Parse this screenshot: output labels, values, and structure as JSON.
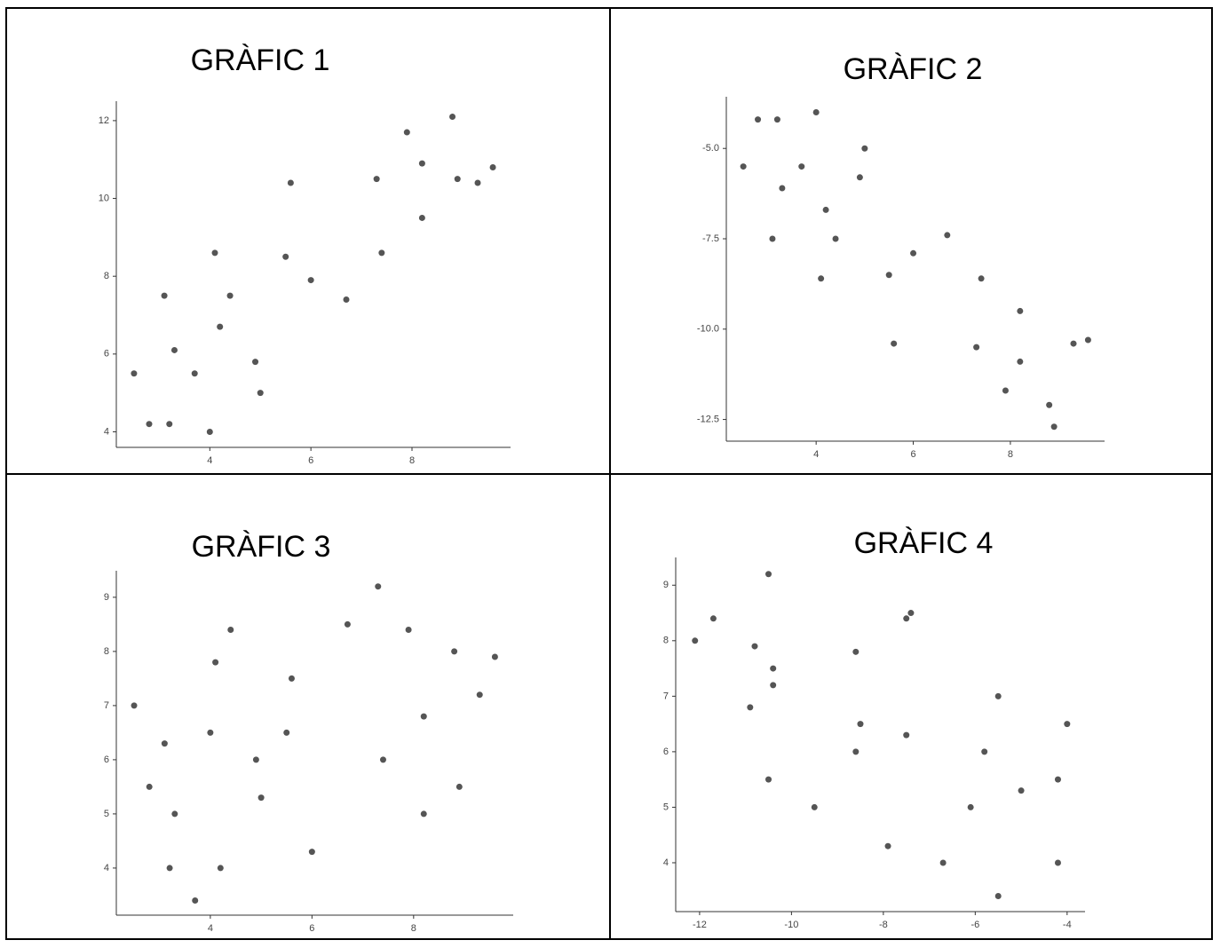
{
  "chart_data": [
    {
      "type": "scatter",
      "title": "GRÀFIC 1",
      "color": "#555555",
      "x": [
        2.5,
        2.8,
        3.1,
        3.2,
        3.3,
        3.7,
        4.0,
        4.1,
        4.2,
        4.4,
        4.9,
        5.0,
        5.5,
        5.6,
        6.0,
        6.7,
        7.3,
        7.4,
        7.9,
        8.2,
        8.2,
        8.8,
        8.9,
        9.3,
        9.6
      ],
      "values": [
        5.5,
        4.2,
        7.5,
        4.2,
        6.1,
        5.5,
        4.0,
        8.6,
        6.7,
        7.5,
        5.8,
        5.0,
        8.5,
        10.4,
        7.9,
        7.4,
        10.5,
        8.6,
        11.7,
        10.9,
        9.5,
        12.1,
        10.5,
        10.4,
        10.8
      ],
      "xlim": [
        2.15,
        9.95
      ],
      "ylim": [
        3.6,
        12.5
      ],
      "xticks": [
        4,
        6,
        8
      ],
      "yticks": [
        4,
        6,
        8,
        10,
        12
      ],
      "grid": false
    },
    {
      "type": "scatter",
      "title": "GRÀFIC 2",
      "color": "#555555",
      "x": [
        2.5,
        2.8,
        3.1,
        3.2,
        3.3,
        3.7,
        4.0,
        4.1,
        4.2,
        4.4,
        4.9,
        5.0,
        5.5,
        5.6,
        6.0,
        6.7,
        7.3,
        7.4,
        7.9,
        8.2,
        8.2,
        8.8,
        8.9,
        9.3,
        9.6
      ],
      "values": [
        -5.5,
        -4.2,
        -7.5,
        -4.2,
        -6.1,
        -5.5,
        -4.0,
        -8.6,
        -6.7,
        -7.5,
        -5.8,
        -5.0,
        -8.5,
        -10.4,
        -7.9,
        -7.4,
        -10.5,
        -8.6,
        -11.7,
        -9.5,
        -10.9,
        -12.1,
        -12.7,
        -10.4,
        -10.3
      ],
      "xlim": [
        2.15,
        9.94
      ],
      "ylim": [
        -13.1,
        -3.57
      ],
      "xticks": [
        4,
        6,
        8
      ],
      "yticks": [
        {
          "value": -5,
          "label": "-5.0"
        },
        -7.5,
        {
          "value": -10,
          "label": "-10.0"
        },
        -12.5
      ],
      "grid": false
    },
    {
      "type": "scatter",
      "title": "GRÀFIC 3",
      "color": "#555555",
      "x": [
        2.5,
        2.8,
        3.1,
        3.2,
        3.3,
        3.7,
        4.0,
        4.1,
        4.2,
        4.4,
        4.9,
        5.0,
        5.5,
        5.6,
        6.0,
        6.7,
        7.3,
        7.4,
        7.9,
        8.2,
        8.2,
        8.8,
        8.9,
        9.3,
        9.6
      ],
      "values": [
        7.0,
        5.5,
        6.3,
        4.0,
        5.0,
        3.4,
        6.5,
        7.8,
        4.0,
        8.4,
        6.0,
        5.3,
        6.5,
        7.5,
        4.3,
        8.5,
        9.2,
        6.0,
        8.4,
        6.8,
        5.0,
        8.0,
        5.5,
        7.2,
        7.9
      ],
      "xlim": [
        2.15,
        9.96
      ],
      "ylim": [
        3.13,
        9.49
      ],
      "xticks": [
        4,
        6,
        8
      ],
      "yticks": [
        4,
        5,
        6,
        7,
        8,
        9
      ],
      "grid": false
    },
    {
      "type": "scatter",
      "title": "GRÀFIC 4",
      "color": "#555555",
      "x": [
        -12.1,
        -11.7,
        -10.9,
        -10.8,
        -10.5,
        -10.5,
        -10.4,
        -10.4,
        -9.5,
        -8.6,
        -8.6,
        -8.5,
        -7.9,
        -7.5,
        -7.5,
        -7.4,
        -6.7,
        -6.1,
        -5.8,
        -5.5,
        -5.5,
        -5.0,
        -4.2,
        -4.2,
        -4.0
      ],
      "values": [
        8.0,
        8.4,
        6.8,
        7.9,
        9.2,
        5.5,
        7.5,
        7.2,
        5.0,
        7.8,
        6.0,
        6.5,
        4.3,
        6.3,
        8.4,
        8.5,
        4.0,
        5.0,
        6.0,
        7.0,
        3.4,
        5.3,
        5.5,
        4.0,
        6.5
      ],
      "xlim": [
        -12.52,
        -3.61
      ],
      "ylim": [
        3.12,
        9.5
      ],
      "xticks": [
        -12,
        -10,
        -8,
        -6,
        -4
      ],
      "yticks": [
        4,
        5,
        6,
        7,
        8,
        9
      ],
      "grid": false
    }
  ]
}
